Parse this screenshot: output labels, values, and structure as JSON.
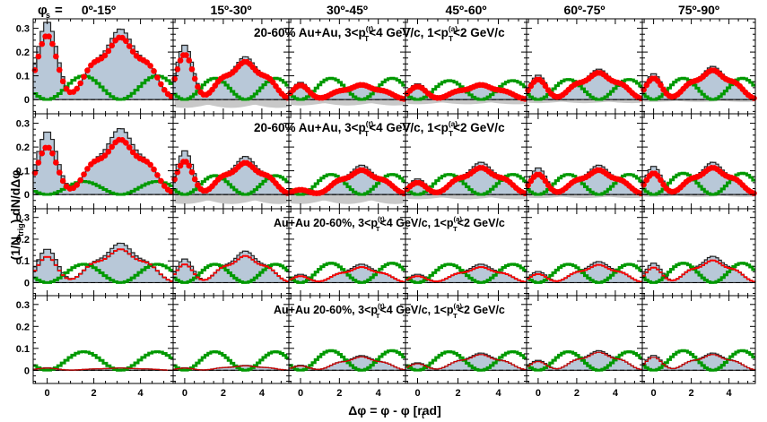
{
  "chart_data": {
    "type": "line",
    "columns": [
      "0º-15º",
      "15º-30º",
      "30º-45º",
      "45º-60º",
      "60º-75º",
      "75º-90º"
    ],
    "phi_s_symbol": "φ",
    "phi_s_sub": "s",
    "phi_s_eq": "=",
    "ylabel_parts": {
      "pre": "(1/N",
      "sub": "trig",
      "post": ") dN/dΔφ"
    },
    "xlabel": "Δφ = φ - φ  [rad]",
    "xlabel_sub": "t",
    "x_ticks": [
      0,
      2,
      4
    ],
    "y_ticks": [
      0,
      0.1,
      0.2,
      0.3
    ],
    "y_tick_labels": [
      "0",
      "0.1",
      "0.2",
      "0.3"
    ],
    "xlim": [
      -0.6,
      5.4
    ],
    "ylim": [
      -0.06,
      0.34
    ],
    "row_labels": [
      {
        "pre": "20-60% Au+Au, 3<p",
        "sup1": "(t)",
        "mid": "<4 GeV/c, 1<p",
        "sup2": "(a)",
        "post": "<2 GeV/c"
      },
      {
        "pre": "20-60% Au+Au, 3<p",
        "sup1": "(t)",
        "mid": "<4 GeV/c, 1<p",
        "sup2": "(a)",
        "post": "<2 GeV/c"
      },
      {
        "pre": "Au+Au 20-60%, 3<p",
        "sup1": "(t)",
        "mid": "<4 GeV/c, 1<p",
        "sup2": "(a)",
        "post": "<2 GeV/c"
      },
      {
        "pre": "Au+Au 20-60%, 3<p",
        "sup1": "(t)",
        "mid": "<4 GeV/c, 1<p",
        "sup2": "(a)",
        "post": "<2 GeV/c"
      }
    ],
    "row_label_sub": "T",
    "colors": {
      "data": "#ff0000",
      "flow": "#009900",
      "syst_fill": "#b8c8d8",
      "band": "#c8c8c8"
    },
    "near_amp": [
      [
        0.27,
        0.19,
        0.06,
        0.055,
        0.085,
        0.09
      ],
      [
        0.2,
        0.14,
        0.02,
        0.05,
        0.085,
        0.09
      ],
      [
        0.12,
        0.085,
        0.03,
        0.03,
        0.04,
        0.07
      ],
      [
        0.01,
        0.01,
        0.02,
        0.03,
        0.04,
        0.06
      ]
    ],
    "away_amp": [
      [
        0.255,
        0.155,
        0.06,
        0.06,
        0.11,
        0.12
      ],
      [
        0.225,
        0.13,
        0.1,
        0.11,
        0.1,
        0.11
      ],
      [
        0.15,
        0.12,
        0.07,
        0.07,
        0.08,
        0.1
      ],
      [
        0.01,
        0.02,
        0.06,
        0.07,
        0.08,
        0.07
      ]
    ],
    "flow_amp": [
      [
        0.1,
        0.09,
        0.09,
        0.08,
        0.085,
        0.09
      ],
      [
        0.055,
        0.08,
        0.085,
        0.085,
        0.085,
        0.09
      ],
      [
        0.085,
        0.085,
        0.09,
        0.085,
        0.085,
        0.09
      ],
      [
        0.085,
        0.085,
        0.09,
        0.085,
        0.085,
        0.09
      ]
    ],
    "syst_extra": [
      0.06,
      0.09,
      0.08,
      0.04
    ],
    "band_depth": [
      [
        0.0,
        0.035,
        0.025,
        0.02,
        0.015,
        0.01
      ],
      [
        0.0,
        0.04,
        0.04,
        0.02,
        0.015,
        0.01
      ],
      [
        0.0,
        0.0,
        0.0,
        0.0,
        0.0,
        0.0
      ],
      [
        0.0,
        0.0,
        0.0,
        0.0,
        0.0,
        0.0
      ]
    ],
    "n_bins": 40
  }
}
